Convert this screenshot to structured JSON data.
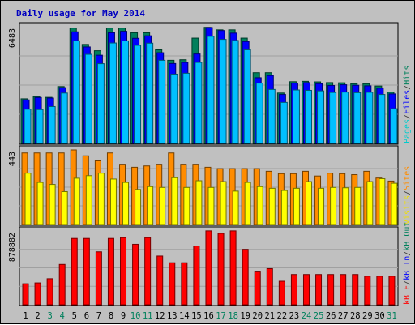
{
  "chart_data": {
    "type": "bar",
    "title": "Daily usage for May 2014",
    "days": [
      "1",
      "2",
      "3",
      "4",
      "5",
      "6",
      "7",
      "8",
      "9",
      "10",
      "11",
      "12",
      "13",
      "14",
      "15",
      "16",
      "17",
      "18",
      "19",
      "20",
      "21",
      "22",
      "23",
      "24",
      "25",
      "26",
      "27",
      "28",
      "29",
      "30",
      "31"
    ],
    "weekend_days": [
      "3",
      "4",
      "10",
      "11",
      "17",
      "18",
      "24",
      "25",
      "31"
    ],
    "panels": [
      {
        "id": "hits",
        "ymax_label": "6483",
        "ymax": 6483,
        "legend": [
          {
            "text": "Pages",
            "color": "#00cccc"
          },
          {
            "text": "/",
            "color": "#333333"
          },
          {
            "text": "Files",
            "color": "#0000ff"
          },
          {
            "text": "/",
            "color": "#333333"
          },
          {
            "text": "Hits",
            "color": "#00805c"
          }
        ],
        "series": [
          {
            "name": "Hits",
            "color": "#00805c",
            "values": [
              2480,
              2600,
              2560,
              3160,
              6410,
              5500,
              5150,
              6410,
              6410,
              6150,
              6150,
              5200,
              4620,
              4650,
              5850,
              6450,
              6310,
              6310,
              5850,
              3930,
              3930,
              2800,
              3430,
              3450,
              3420,
              3380,
              3370,
              3320,
              3320,
              3190,
              2850
            ]
          },
          {
            "name": "Files",
            "color": "#0000ff",
            "values": [
              2420,
              2550,
              2520,
              3100,
              6200,
              5360,
              4900,
              6150,
              6230,
              5840,
              5980,
              5040,
              4440,
              4500,
              4970,
              6440,
              6270,
              6130,
              5660,
              3650,
              3770,
              2720,
              3350,
              3380,
              3320,
              3220,
              3260,
              3230,
              3200,
              3070,
              2750
            ]
          },
          {
            "name": "Pages",
            "color": "#00c0ff",
            "values": [
              1900,
              1880,
              2050,
              2800,
              5700,
              4950,
              4430,
              5580,
              5700,
              5450,
              5570,
              4620,
              3850,
              3900,
              4500,
              5950,
              5780,
              5720,
              5200,
              3350,
              3000,
              2280,
              2970,
              2950,
              2920,
              2830,
              2850,
              2820,
              2840,
              2720,
              1930
            ]
          }
        ]
      },
      {
        "id": "visits",
        "ymax_label": "443",
        "ymax": 443,
        "legend": [
          {
            "text": "Visits",
            "color": "#f0e000"
          },
          {
            "text": "/",
            "color": "#333333"
          },
          {
            "text": "Sites",
            "color": "#ff8c00"
          }
        ],
        "series": [
          {
            "name": "Sites",
            "color": "#ff8c00",
            "values": [
              425,
              425,
              425,
              425,
              443,
              408,
              378,
              425,
              358,
              340,
              348,
              358,
              425,
              358,
              358,
              340,
              332,
              332,
              332,
              332,
              316,
              302,
              302,
              316,
              288,
              305,
              302,
              296,
              316,
              276,
              258
            ]
          },
          {
            "name": "Visits",
            "color": "#ffff00",
            "values": [
              305,
              250,
              238,
              195,
              275,
              290,
              305,
              270,
              250,
              208,
              225,
              220,
              278,
              220,
              260,
              220,
              255,
              198,
              250,
              225,
              215,
              202,
              215,
              255,
              215,
              220,
              218,
              220,
              255,
              272,
              245
            ]
          }
        ]
      },
      {
        "id": "kbytes",
        "ymax_label": "878882",
        "ymax": 878882,
        "legend": [
          {
            "text": "kB F",
            "color": "#ff0000"
          },
          {
            "text": "/",
            "color": "#333333"
          },
          {
            "text": "kB In",
            "color": "#0000ff"
          },
          {
            "text": "/",
            "color": "#333333"
          },
          {
            "text": "kB Out",
            "color": "#00805c"
          }
        ],
        "series": [
          {
            "name": "kB F",
            "color": "#ff0000",
            "values": [
              250000,
              260000,
              310000,
              480000,
              790000,
              790000,
              630000,
              790000,
              800000,
              720000,
              800000,
              580000,
              500000,
              500000,
              700000,
              880000,
              850000,
              880000,
              660000,
              400000,
              430000,
              280000,
              360000,
              360000,
              360000,
              360000,
              360000,
              360000,
              340000,
              340000,
              340000
            ]
          }
        ]
      }
    ]
  }
}
